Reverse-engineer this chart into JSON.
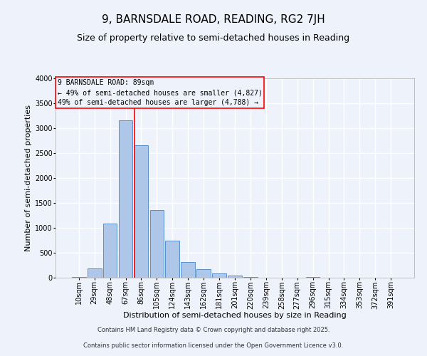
{
  "title": "9, BARNSDALE ROAD, READING, RG2 7JH",
  "subtitle": "Size of property relative to semi-detached houses in Reading",
  "bar_labels": [
    "10sqm",
    "29sqm",
    "48sqm",
    "67sqm",
    "86sqm",
    "105sqm",
    "124sqm",
    "143sqm",
    "162sqm",
    "181sqm",
    "201sqm",
    "220sqm",
    "239sqm",
    "258sqm",
    "277sqm",
    "296sqm",
    "315sqm",
    "334sqm",
    "353sqm",
    "372sqm",
    "391sqm"
  ],
  "bar_values": [
    15,
    190,
    1090,
    3150,
    2650,
    1360,
    740,
    310,
    175,
    85,
    40,
    15,
    5,
    0,
    0,
    20,
    0,
    0,
    0,
    0,
    0
  ],
  "bar_color": "#aec6e8",
  "bar_edge_color": "#5b8fc9",
  "vline_color": "red",
  "ylim": [
    0,
    4000
  ],
  "yticks": [
    0,
    500,
    1000,
    1500,
    2000,
    2500,
    3000,
    3500,
    4000
  ],
  "ylabel": "Number of semi-detached properties",
  "xlabel": "Distribution of semi-detached houses by size in Reading",
  "annotation_title": "9 BARNSDALE ROAD: 89sqm",
  "annotation_line1": "← 49% of semi-detached houses are smaller (4,827)",
  "annotation_line2": "49% of semi-detached houses are larger (4,788) →",
  "footer_line1": "Contains HM Land Registry data © Crown copyright and database right 2025.",
  "footer_line2": "Contains public sector information licensed under the Open Government Licence v3.0.",
  "background_color": "#eef2fa",
  "grid_color": "#ffffff",
  "title_fontsize": 11,
  "subtitle_fontsize": 9,
  "axis_label_fontsize": 8,
  "tick_fontsize": 7,
  "footer_fontsize": 6
}
